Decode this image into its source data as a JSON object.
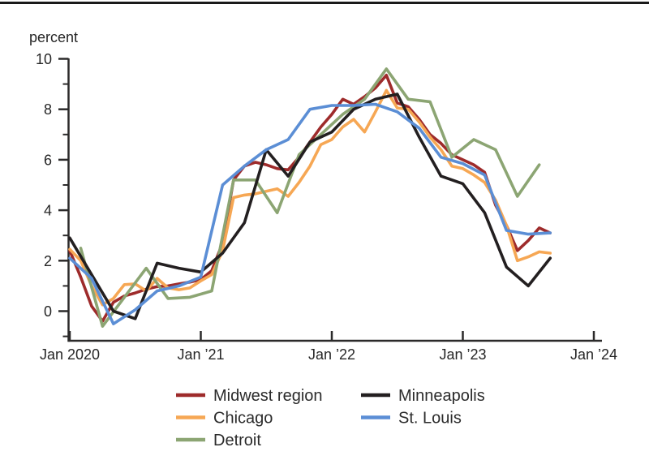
{
  "page": {
    "background": "#ffffff",
    "top_rule_color": "#1a1a1a",
    "axis_color": "#2b2a2a",
    "text_color": "#262626"
  },
  "chart_data": {
    "type": "line",
    "title": "",
    "ylabel": "percent",
    "xlabel": "",
    "grid": false,
    "legend_position": "bottom",
    "x_unit": "months since Jan 2020",
    "x_axis": {
      "tick_labels": [
        "Jan 2020",
        "Jan ’21",
        "Jan ’22",
        "Jan ’23",
        "Jan ’24"
      ],
      "tick_months": [
        0,
        12,
        24,
        36,
        48
      ]
    },
    "y_axis": {
      "major_ticks": [
        0,
        2,
        4,
        6,
        8,
        10
      ],
      "minor_ticks": [
        -1,
        1,
        3,
        5,
        7,
        9
      ],
      "ylim": [
        -1.2,
        10
      ]
    },
    "series": [
      {
        "name": "Midwest region",
        "color": "#9e2b2b",
        "months": [
          0,
          1,
          2,
          3,
          4,
          5,
          6,
          7,
          8,
          9,
          10,
          11,
          12,
          13,
          14,
          15,
          16,
          17,
          18,
          19,
          20,
          21,
          22,
          23,
          24,
          25,
          26,
          27,
          28,
          29,
          30,
          31,
          32,
          33,
          34,
          35,
          36,
          37,
          38,
          39,
          40,
          41,
          42,
          43,
          44
        ],
        "values": [
          2.4,
          1.35,
          0.2,
          -0.4,
          0.35,
          0.6,
          0.72,
          0.87,
          0.97,
          1.0,
          1.08,
          1.15,
          1.25,
          1.6,
          2.7,
          5.2,
          5.75,
          5.9,
          5.8,
          5.65,
          5.6,
          6.1,
          6.7,
          7.3,
          7.8,
          8.4,
          8.2,
          8.5,
          8.85,
          9.35,
          8.25,
          8.1,
          7.6,
          7.0,
          6.65,
          6.2,
          6.0,
          5.8,
          5.5,
          4.2,
          3.4,
          2.4,
          2.8,
          3.3,
          3.1
        ]
      },
      {
        "name": "Chicago",
        "color": "#f6a754",
        "months": [
          0,
          1,
          2,
          3,
          4,
          5,
          6,
          7,
          8,
          9,
          10,
          11,
          12,
          13,
          14,
          15,
          16,
          17,
          18,
          19,
          20,
          21,
          22,
          23,
          24,
          25,
          26,
          27,
          28,
          29,
          30,
          31,
          32,
          33,
          34,
          35,
          36,
          37,
          38,
          39,
          40,
          41,
          42,
          43,
          44
        ],
        "values": [
          2.45,
          2.0,
          1.0,
          0.25,
          0.5,
          1.05,
          1.08,
          0.8,
          1.3,
          0.92,
          0.85,
          0.92,
          1.2,
          1.45,
          2.4,
          4.5,
          4.6,
          4.65,
          4.75,
          4.85,
          4.55,
          5.1,
          5.75,
          6.6,
          6.8,
          7.3,
          7.6,
          7.1,
          7.9,
          8.75,
          8.05,
          8.0,
          7.5,
          6.9,
          6.4,
          5.75,
          5.65,
          5.4,
          5.1,
          4.4,
          3.4,
          2.0,
          2.15,
          2.35,
          2.3
        ]
      },
      {
        "name": "Detroit",
        "color": "#8ca573",
        "months": [
          1,
          3,
          5,
          7,
          9,
          11,
          13,
          15,
          17,
          19,
          21,
          23,
          25,
          27,
          29,
          31,
          33,
          35,
          37,
          39,
          41,
          43
        ],
        "values": [
          2.5,
          -0.6,
          0.55,
          1.7,
          0.5,
          0.55,
          0.8,
          5.2,
          5.2,
          3.9,
          6.2,
          7.0,
          7.8,
          8.4,
          9.6,
          8.4,
          8.3,
          6.1,
          6.8,
          6.4,
          4.55,
          5.8
        ]
      },
      {
        "name": "Minneapolis",
        "color": "#231f20",
        "months": [
          0,
          2,
          4,
          6,
          8,
          10,
          12,
          14,
          16,
          18,
          20,
          22,
          24,
          26,
          28,
          30,
          32,
          34,
          36,
          38,
          40,
          42,
          44
        ],
        "values": [
          2.9,
          1.45,
          0.0,
          -0.3,
          1.9,
          1.7,
          1.55,
          2.3,
          3.5,
          6.4,
          5.35,
          6.7,
          7.1,
          8.0,
          8.4,
          8.6,
          6.9,
          5.35,
          5.05,
          3.9,
          1.75,
          1.0,
          2.1
        ]
      },
      {
        "name": "St. Louis",
        "color": "#5b8ed5",
        "months": [
          0,
          2,
          4,
          6,
          8,
          10,
          12,
          14,
          16,
          18,
          20,
          22,
          24,
          26,
          28,
          30,
          32,
          34,
          36,
          38,
          40,
          42,
          44
        ],
        "values": [
          2.1,
          1.3,
          -0.5,
          0.05,
          0.8,
          1.0,
          1.35,
          5.0,
          5.75,
          6.4,
          6.8,
          8.0,
          8.15,
          8.15,
          8.2,
          7.9,
          7.25,
          6.1,
          5.85,
          5.4,
          3.2,
          3.05,
          3.1
        ]
      }
    ],
    "legend": {
      "columns": [
        [
          "Midwest region",
          "Chicago",
          "Detroit"
        ],
        [
          "Minneapolis",
          "St. Louis"
        ]
      ]
    }
  }
}
